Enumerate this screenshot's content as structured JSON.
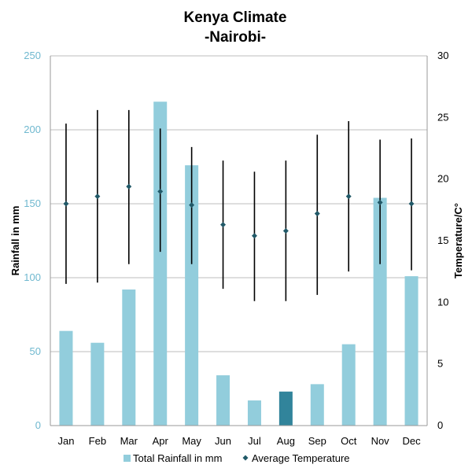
{
  "chart_data": {
    "type": "bar",
    "title": "Kenya Climate",
    "subtitle": "-Nairobi-",
    "categories": [
      "Jan",
      "Feb",
      "Mar",
      "Apr",
      "May",
      "Jun",
      "Jul",
      "Aug",
      "Sep",
      "Oct",
      "Nov",
      "Dec"
    ],
    "ylabel": "Rainfall in mm",
    "y2label": "Temperature/C°",
    "ylim": [
      0,
      250
    ],
    "y2lim": [
      0,
      30
    ],
    "yticks": [
      "0",
      "50",
      "100",
      "150",
      "200",
      "250"
    ],
    "y2ticks": [
      "0",
      "5",
      "10",
      "15",
      "20",
      "25",
      "30"
    ],
    "grid": true,
    "legend_position": "bottom",
    "series": [
      {
        "name": "Total Rainfall in mm",
        "type": "bar",
        "axis": "left",
        "values": [
          64,
          56,
          92,
          219,
          176,
          34,
          17,
          23,
          28,
          55,
          154,
          101
        ],
        "color": "#92cddc",
        "highlight_index": 7,
        "highlight_color": "#31849b"
      },
      {
        "name": "Average Temperature",
        "type": "point",
        "axis": "right",
        "values": [
          18.0,
          18.6,
          19.4,
          19.0,
          17.9,
          16.3,
          15.4,
          15.8,
          17.2,
          18.6,
          18.1,
          18.0
        ],
        "range_low": [
          11.5,
          11.6,
          13.1,
          14.1,
          13.1,
          11.1,
          10.1,
          10.1,
          10.6,
          12.5,
          13.1,
          12.6
        ],
        "range_high": [
          24.5,
          25.6,
          25.6,
          24.1,
          22.6,
          21.5,
          20.6,
          21.5,
          23.6,
          24.7,
          23.2,
          23.3
        ],
        "color": "#215968"
      }
    ]
  }
}
